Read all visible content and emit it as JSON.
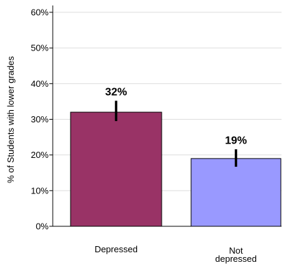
{
  "chart_data": {
    "type": "bar",
    "categories": [
      "Depressed",
      "Not depressed"
    ],
    "category_label_lines": [
      [
        "Depressed"
      ],
      [
        "Not",
        "depressed"
      ]
    ],
    "values": [
      32,
      19
    ],
    "value_labels": [
      "32%",
      "19%"
    ],
    "error_low": [
      29.5,
      16.7
    ],
    "error_high": [
      35.2,
      21.6
    ],
    "bar_colors": [
      "#993366",
      "#9999ff"
    ],
    "ylabel": "% of Students with lower grades",
    "ylim": [
      0,
      60
    ],
    "yticks": [
      0,
      10,
      20,
      30,
      40,
      50,
      60
    ],
    "ytick_labels": [
      "0%",
      "10%",
      "20%",
      "30%",
      "40%",
      "50%",
      "60%"
    ],
    "grid": "horizontal",
    "grid_color": "#dddddd"
  }
}
